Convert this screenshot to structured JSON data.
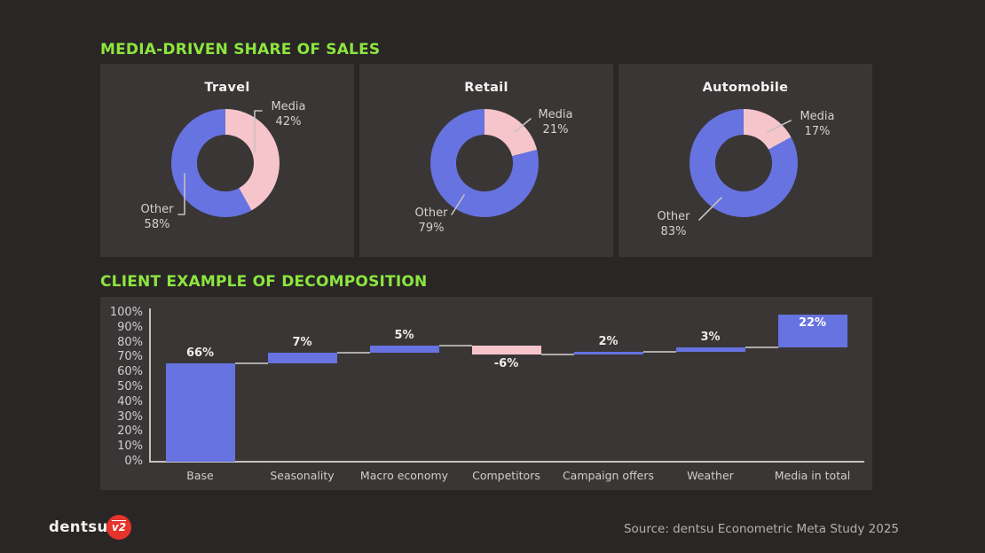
{
  "sections": {
    "media_share_title": "MEDIA-DRIVEN SHARE OF SALES",
    "decomposition_title": "CLIENT EXAMPLE OF DECOMPOSITION"
  },
  "colors": {
    "accent_green": "#8CE63E",
    "media_pink": "#F6C5CB",
    "other_blue": "#6673E0",
    "panel_bg": "#3A3636",
    "page_bg": "#2A2626",
    "logo_red": "#E4342B",
    "axis_gray": "#C6C1C1"
  },
  "chart_data": [
    {
      "type": "pie",
      "subtype": "donut",
      "title": "Travel",
      "labels": [
        "Media",
        "Other"
      ],
      "values": [
        42,
        58
      ],
      "value_labels": [
        "42%",
        "58%"
      ],
      "colors": [
        "#F6C5CB",
        "#6673E0"
      ],
      "legend": false
    },
    {
      "type": "pie",
      "subtype": "donut",
      "title": "Retail",
      "labels": [
        "Media",
        "Other"
      ],
      "values": [
        21,
        79
      ],
      "value_labels": [
        "21%",
        "79%"
      ],
      "colors": [
        "#F6C5CB",
        "#6673E0"
      ],
      "legend": false
    },
    {
      "type": "pie",
      "subtype": "donut",
      "title": "Automobile",
      "labels": [
        "Media",
        "Other"
      ],
      "values": [
        17,
        83
      ],
      "value_labels": [
        "17%",
        "83%"
      ],
      "colors": [
        "#F6C5CB",
        "#6673E0"
      ],
      "legend": false
    },
    {
      "type": "bar",
      "subtype": "waterfall",
      "categories": [
        "Base",
        "Seasonality",
        "Macro economy",
        "Competitors",
        "Campaign offers",
        "Weather",
        "Media in total"
      ],
      "values": [
        66,
        7,
        5,
        -6,
        2,
        3,
        22
      ],
      "value_labels": [
        "66%",
        "7%",
        "5%",
        "-6%",
        "2%",
        "3%",
        "22%"
      ],
      "y_tick_labels": [
        "0%",
        "10%",
        "20%",
        "30%",
        "40%",
        "50%",
        "60%",
        "70%",
        "80%",
        "90%",
        "100%"
      ],
      "ylim": [
        0,
        100
      ],
      "positive_color": "#6673E0",
      "negative_color": "#F6C5CB",
      "grid": false,
      "legend": false
    }
  ],
  "footer": {
    "brand": "dentsu",
    "logo_mark": "v2",
    "source": "Source: dentsu Econometric Meta Study 2025"
  }
}
